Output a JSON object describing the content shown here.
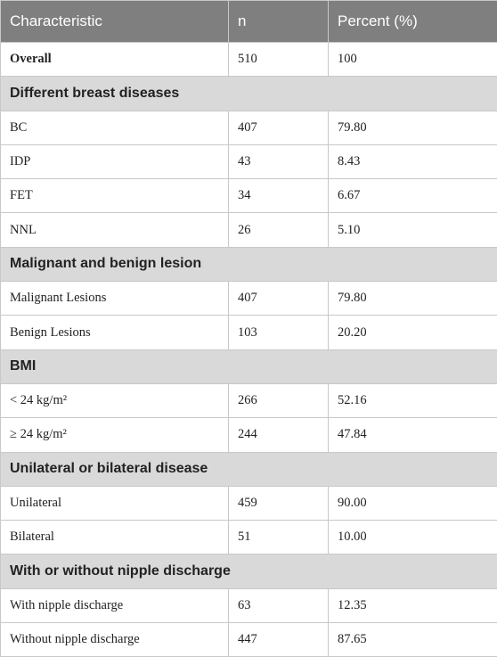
{
  "table": {
    "header": [
      "Characteristic",
      "n",
      "Percent (%)"
    ],
    "rows": [
      [
        "Overall",
        "510",
        "100"
      ],
      [
        "Different breast diseases"
      ],
      [
        "BC",
        "407",
        "79.80"
      ],
      [
        "IDP",
        "43",
        "8.43"
      ],
      [
        "FET",
        "34",
        "6.67"
      ],
      [
        "NNL",
        "26",
        "5.10"
      ],
      [
        "Malignant and benign lesion"
      ],
      [
        "Malignant Lesions",
        "407",
        "79.80"
      ],
      [
        "Benign Lesions",
        "103",
        "20.20"
      ],
      [
        "BMI"
      ],
      [
        "< 24 kg/m²",
        "266",
        "52.16"
      ],
      [
        "≥ 24 kg/m²",
        "244",
        "47.84"
      ],
      [
        "Unilateral or bilateral disease"
      ],
      [
        "Unilateral",
        "459",
        "90.00"
      ],
      [
        "Bilateral",
        "51",
        "10.00"
      ],
      [
        "With or without nipple discharge"
      ],
      [
        "With nipple discharge",
        "63",
        "12.35"
      ],
      [
        "Without nipple discharge",
        "447",
        "87.65"
      ]
    ]
  }
}
